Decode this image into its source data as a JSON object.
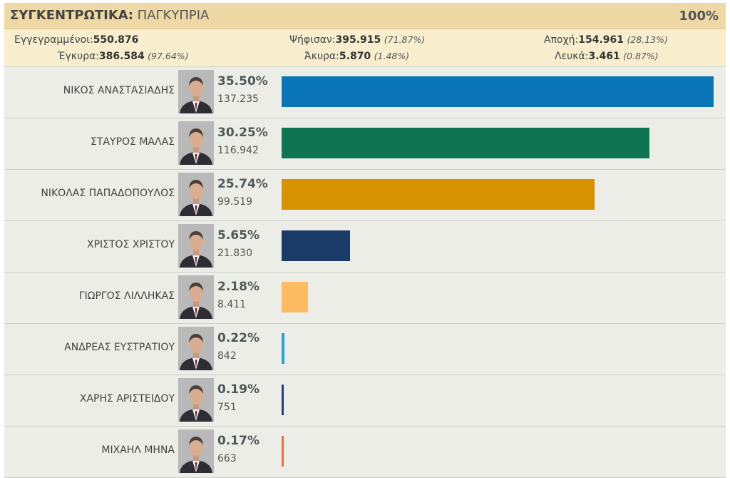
{
  "header": {
    "title_bold": "ΣΥΓΚΕΝΤΡΩΤΙΚΑ:",
    "title_rest": " ΠΑΓΚΥΠΡΙΑ",
    "percent": "100%"
  },
  "stats": {
    "registered": {
      "label": "Εγγεγραμμένοι:",
      "value": "550.876"
    },
    "voted": {
      "label": "Ψήφισαν:",
      "value": "395.915",
      "pct": "(71.87%)"
    },
    "abstention": {
      "label": "Αποχή:",
      "value": "154.961",
      "pct": "(28.13%)"
    },
    "valid": {
      "label": "Έγκυρα:",
      "value": "386.584",
      "pct": "(97.64%)"
    },
    "invalid": {
      "label": "Άκυρα:",
      "value": "5.870",
      "pct": "(1.48%)"
    },
    "blank": {
      "label": "Λευκά:",
      "value": "3.461",
      "pct": "(0.87%)"
    }
  },
  "chart_data": {
    "type": "bar",
    "orientation": "horizontal",
    "title": "ΣΥΓΚΕΝΤΡΩΤΙΚΑ: ΠΑΓΚΥΠΡΙΑ",
    "xlim": [
      0,
      35.5
    ],
    "categories": [
      "ΝΙΚΟΣ ΑΝΑΣΤΑΣΙΑΔΗΣ",
      "ΣΤΑΥΡΟΣ ΜΑΛΑΣ",
      "ΝΙΚΟΛΑΣ ΠΑΠΑΔΟΠΟΥΛΟΣ",
      "ΧΡΙΣΤΟΣ ΧΡΙΣΤΟΥ",
      "ΓΙΩΡΓΟΣ ΛΙΛΛΗΚΑΣ",
      "ΑΝΔΡΕΑΣ ΕΥΣΤΡΑΤΙΟΥ",
      "ΧΑΡΗΣ ΑΡΙΣΤΕΙΔΟΥ",
      "ΜΙΧΑΗΛ ΜΗΝΑ"
    ],
    "values": [
      35.5,
      30.25,
      25.74,
      5.65,
      2.18,
      0.22,
      0.19,
      0.17
    ],
    "value_labels": [
      "35.50%",
      "30.25%",
      "25.74%",
      "5.65%",
      "2.18%",
      "0.22%",
      "0.19%",
      "0.17%"
    ],
    "votes": [
      "137.235",
      "116.942",
      "99.519",
      "21.830",
      "8.411",
      "842",
      "751",
      "663"
    ],
    "colors": [
      "#0a76b7",
      "#0f7451",
      "#d69200",
      "#1a3a67",
      "#fcba63",
      "#27a3d9",
      "#213e91",
      "#e0753a"
    ],
    "grid": false,
    "legend": "none"
  }
}
